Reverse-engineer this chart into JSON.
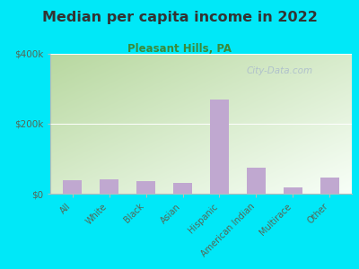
{
  "title": "Median per capita income in 2022",
  "subtitle": "Pleasant Hills, PA",
  "categories": [
    "All",
    "White",
    "Black",
    "Asian",
    "Hispanic",
    "American Indian",
    "Multirace",
    "Other"
  ],
  "values": [
    38000,
    42000,
    36000,
    30000,
    270000,
    75000,
    18000,
    45000
  ],
  "bar_color": "#c0a8d0",
  "ylim": [
    0,
    400000
  ],
  "ytick_labels": [
    "$0",
    "$200k",
    "$400k"
  ],
  "ytick_values": [
    0,
    200000,
    400000
  ],
  "background_outer": "#00e8f8",
  "grad_top_left": "#b8d8a0",
  "grad_bottom_right": "#f8fff8",
  "title_color": "#333333",
  "subtitle_color": "#3a8a3a",
  "tick_color": "#556655",
  "watermark": "City-Data.com",
  "watermark_color": "#aabbcc"
}
